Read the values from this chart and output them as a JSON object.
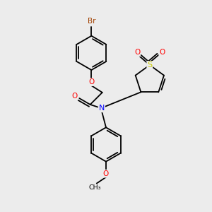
{
  "background_color": "#ececec",
  "bond_color": "#000000",
  "atom_colors": {
    "Br": "#a04000",
    "O": "#ff0000",
    "N": "#0000ff",
    "S": "#cccc00",
    "C": "#000000"
  },
  "figsize": [
    3.0,
    3.0
  ],
  "dpi": 100
}
